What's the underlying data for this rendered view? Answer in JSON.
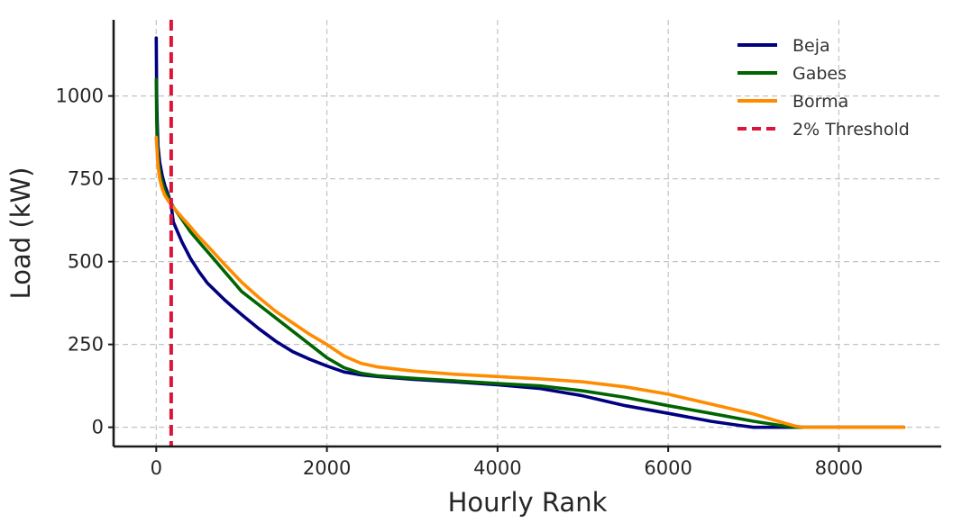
{
  "chart_data": {
    "type": "line",
    "title": "",
    "xlabel": "Hourly Rank",
    "ylabel": "Load (kW)",
    "xlim": [
      -500,
      9200
    ],
    "ylim": [
      -58,
      1230
    ],
    "xticks": [
      0,
      2000,
      4000,
      6000,
      8000
    ],
    "yticks": [
      0,
      250,
      500,
      750,
      1000
    ],
    "grid": true,
    "legend_position": "top-right",
    "series": [
      {
        "name": "Beja",
        "color": "#000080",
        "x": [
          0,
          5,
          10,
          20,
          40,
          70,
          100,
          150,
          175,
          200,
          300,
          400,
          500,
          600,
          700,
          800,
          900,
          1000,
          1200,
          1400,
          1600,
          1800,
          2000,
          2200,
          2400,
          2600,
          3000,
          3500,
          4000,
          4500,
          5000,
          5500,
          6000,
          6500,
          6800,
          7000,
          7500,
          8000,
          8760
        ],
        "y": [
          1175,
          1000,
          930,
          850,
          800,
          760,
          730,
          695,
          670,
          620,
          560,
          510,
          470,
          435,
          410,
          385,
          362,
          340,
          298,
          260,
          228,
          205,
          185,
          167,
          158,
          153,
          145,
          137,
          128,
          117,
          95,
          65,
          42,
          18,
          7,
          0,
          0,
          0,
          0
        ]
      },
      {
        "name": "Gabes",
        "color": "#006400",
        "x": [
          0,
          5,
          10,
          20,
          40,
          70,
          100,
          150,
          200,
          300,
          400,
          500,
          600,
          700,
          800,
          900,
          1000,
          1200,
          1400,
          1600,
          1800,
          2000,
          2200,
          2400,
          2600,
          3000,
          3500,
          4000,
          4500,
          5000,
          5500,
          6000,
          6500,
          7000,
          7300,
          7500,
          7600,
          8000,
          8760
        ],
        "y": [
          1050,
          930,
          860,
          810,
          770,
          740,
          715,
          690,
          665,
          628,
          590,
          560,
          530,
          500,
          470,
          440,
          410,
          370,
          330,
          290,
          250,
          210,
          180,
          163,
          155,
          148,
          140,
          132,
          125,
          110,
          90,
          65,
          42,
          18,
          6,
          0,
          0,
          0,
          0
        ]
      },
      {
        "name": "Borma",
        "color": "#ff8c00",
        "x": [
          0,
          10,
          20,
          40,
          70,
          100,
          150,
          200,
          300,
          400,
          500,
          600,
          700,
          800,
          900,
          1000,
          1200,
          1400,
          1600,
          1800,
          2000,
          2200,
          2400,
          2600,
          3000,
          3500,
          4000,
          4500,
          5000,
          5500,
          6000,
          6500,
          7000,
          7200,
          7400,
          7500,
          7600,
          8000,
          8760
        ],
        "y": [
          875,
          830,
          790,
          750,
          720,
          700,
          680,
          664,
          634,
          605,
          575,
          548,
          520,
          492,
          465,
          438,
          392,
          350,
          315,
          280,
          250,
          215,
          193,
          182,
          170,
          160,
          153,
          146,
          137,
          122,
          100,
          70,
          40,
          25,
          10,
          3,
          0,
          0,
          0
        ]
      }
    ],
    "annotations": [
      {
        "type": "vline",
        "label": "2% Threshold",
        "x": 175,
        "color": "#dc143c",
        "style": "dashed"
      }
    ]
  }
}
